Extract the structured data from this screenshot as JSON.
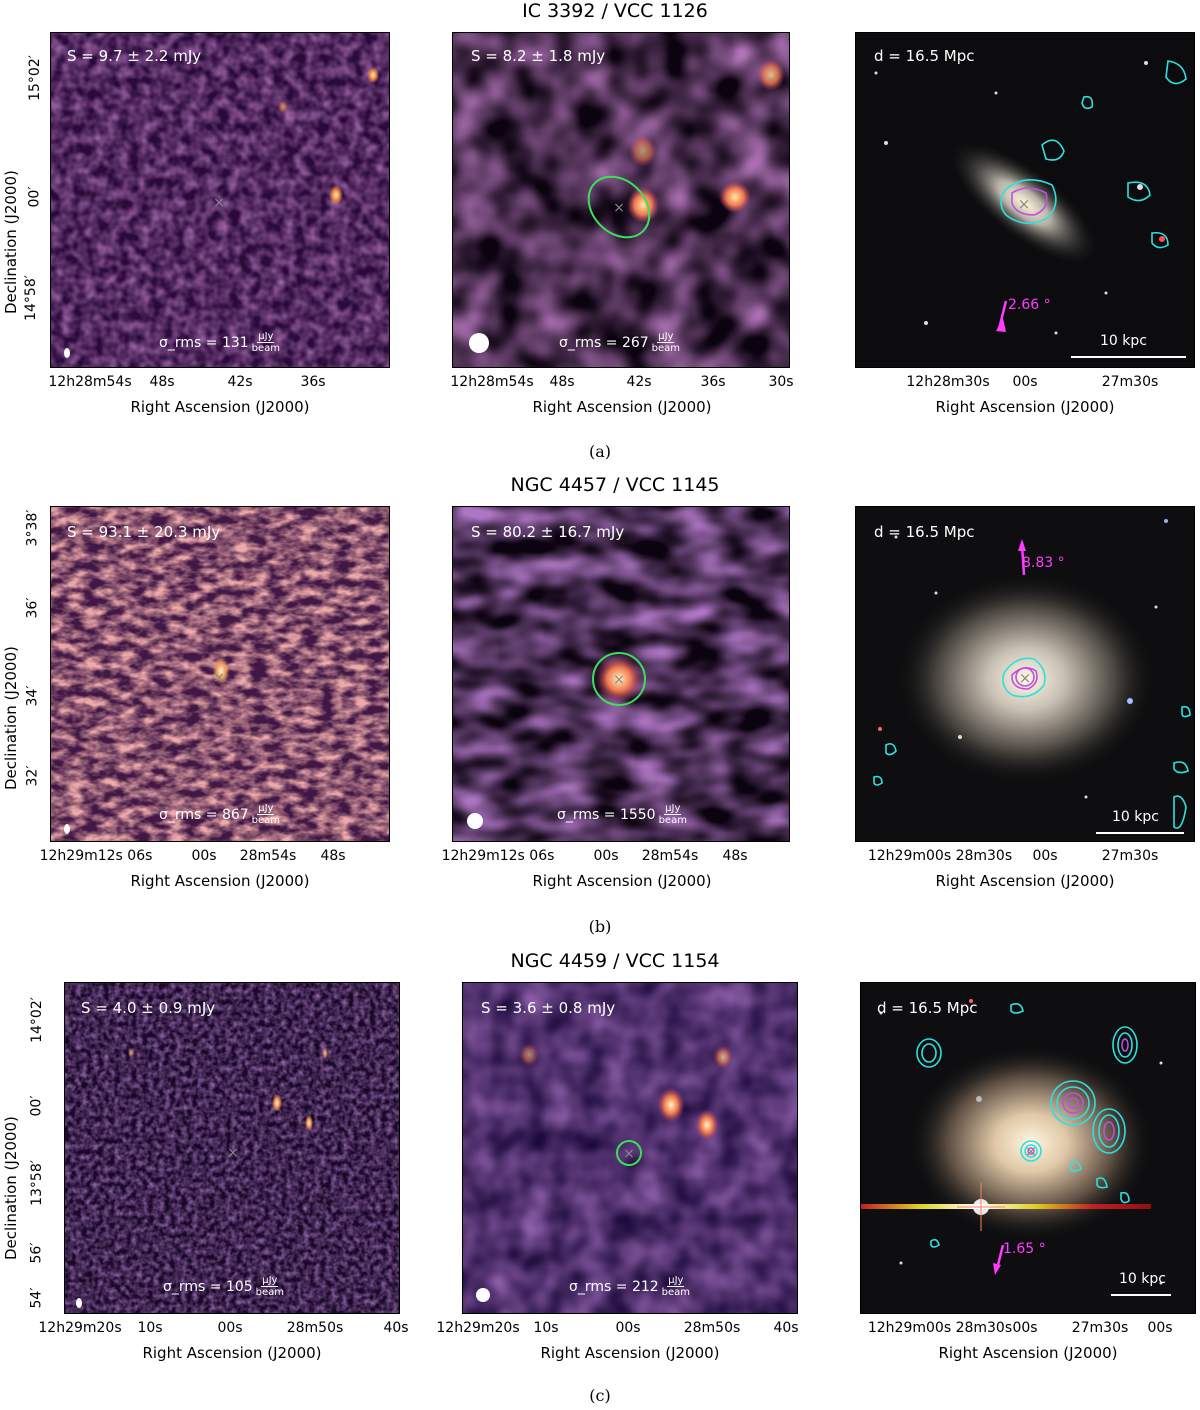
{
  "rows": [
    {
      "title": "IC 3392 / VCC 1126",
      "caption": "(a)",
      "left": {
        "flux": "S = 9.7 ± 2.2 mJy",
        "rms_value": "σ_rms = 131",
        "rms_unit_top": "μJy",
        "rms_unit_bot": "beam"
      },
      "mid": {
        "flux": "S = 8.2 ± 1.8 mJy",
        "rms_value": "σ_rms = 267",
        "rms_unit_top": "μJy",
        "rms_unit_bot": "beam"
      },
      "right": {
        "distance": "d = 16.5 Mpc",
        "angle": "2.66 °",
        "scale": "10 kpc"
      },
      "yticks": [
        "15°02′",
        "00′",
        "14°58′"
      ],
      "xticks_left": [
        "12h28m54s",
        "48s",
        "42s",
        "36s"
      ],
      "xticks_mid": [
        "12h28m54s",
        "48s",
        "42s",
        "36s",
        "30s"
      ],
      "xticks_right": [
        "12h28m30s",
        "00s",
        "27m30s"
      ],
      "ylabel": "Declination (J2000)",
      "xlabel": "Right Ascension (J2000)"
    },
    {
      "title": "NGC 4457 / VCC 1145",
      "caption": "(b)",
      "left": {
        "flux": "S = 93.1 ± 20.3 mJy",
        "rms_value": "σ_rms = 867",
        "rms_unit_top": "μJy",
        "rms_unit_bot": "beam"
      },
      "mid": {
        "flux": "S = 80.2 ± 16.7 mJy",
        "rms_value": "σ_rms = 1550",
        "rms_unit_top": "μJy",
        "rms_unit_bot": "beam"
      },
      "right": {
        "distance": "d = 16.5 Mpc",
        "angle": "8.83 °",
        "scale": "10 kpc"
      },
      "yticks": [
        "3°38′",
        "36′",
        "34′",
        "32′"
      ],
      "xticks_left": [
        "12h29m12s 06s",
        "00s",
        "28m54s",
        "48s"
      ],
      "xticks_mid": [
        "12h29m12s 06s",
        "00s",
        "28m54s",
        "48s"
      ],
      "xticks_right": [
        "12h29m00s 28m30s",
        "00s",
        "27m30s"
      ],
      "ylabel": "Declination (J2000)",
      "xlabel": "Right Ascension (J2000)"
    },
    {
      "title": "NGC 4459 / VCC 1154",
      "caption": "(c)",
      "left": {
        "flux": "S = 4.0 ± 0.9 mJy",
        "rms_value": "σ_rms = 105",
        "rms_unit_top": "μJy",
        "rms_unit_bot": "beam"
      },
      "mid": {
        "flux": "S = 3.6 ± 0.8 mJy",
        "rms_value": "σ_rms = 212",
        "rms_unit_top": "μJy",
        "rms_unit_bot": "beam"
      },
      "right": {
        "distance": "d = 16.5 Mpc",
        "angle": "1.65 °",
        "scale": "10 kpc"
      },
      "yticks": [
        "14°02′",
        "00′",
        "13°58′",
        "56′",
        "54′"
      ],
      "xticks_left": [
        "12h29m20s",
        "10s",
        "00s",
        "28m50s",
        "40s"
      ],
      "xticks_mid": [
        "12h29m20s",
        "10s",
        "00s",
        "28m50s",
        "40s"
      ],
      "xticks_right": [
        "12h29m00s 28m30s",
        "00s",
        "27m30s",
        "00s"
      ],
      "ylabel": "Declination (J2000)",
      "xlabel": "Right Ascension (J2000)"
    }
  ],
  "colors": {
    "contour_cyan": "#2de0e0",
    "contour_magenta": "#c050e0",
    "ellipse_green": "#3adf5a",
    "arrow_magenta": "#ff3cff"
  }
}
